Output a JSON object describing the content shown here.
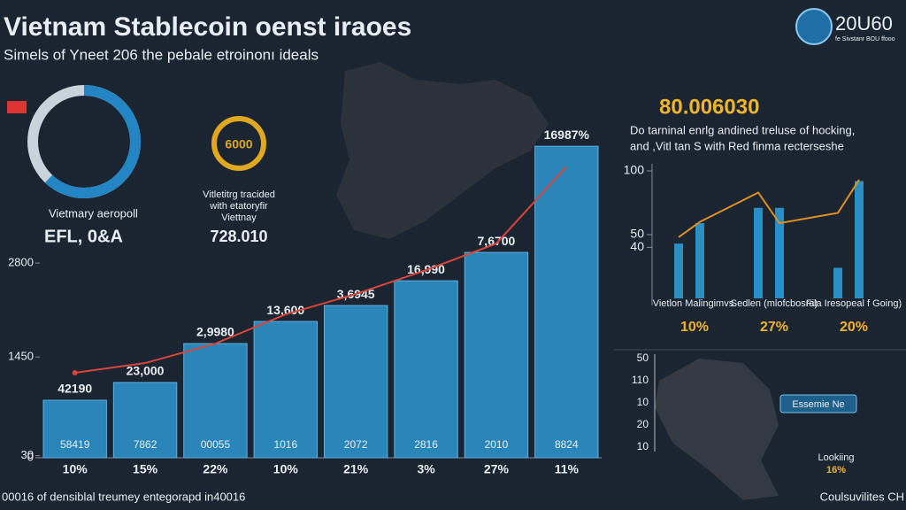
{
  "header": {
    "title": "Vietnam Stablecoin oenst iraoes",
    "subtitle": "Simels of Yneet 206 the pebale etroinonı ideals",
    "logo": "20U60",
    "logo_caption": "fe Sivstanr BOU ffooo"
  },
  "donut_left": {
    "caption": "Vietmary aeropoll",
    "value_text": "EFL, 0&A"
  },
  "donut_mid": {
    "badge": "6000",
    "caption_lines": [
      "Vitletitrg tracided",
      "with etatoryfir",
      "Viettnay"
    ],
    "value_text": "728.010"
  },
  "right_panel": {
    "headline": "80.006030",
    "text_lines": [
      "Do tarninal enrlg andined treluse of hocking,",
      "and ,Vitl tan S with Red finma recterseshe"
    ]
  },
  "map_panel": {
    "scale": [
      50,
      110,
      10,
      20,
      10
    ],
    "callout": "Essemie Ne",
    "legend_label": "Lookiing",
    "legend_value": "16%"
  },
  "footer": {
    "left": "00016 of densiblal treumey entegorapd in40016",
    "right": "Coulsuvilites CH"
  },
  "chart_data": [
    {
      "type": "bar",
      "categories": [
        "58419",
        "7862",
        "00055",
        "1016",
        "2072",
        "2816",
        "2010",
        "8824"
      ],
      "values": [
        827,
        1082,
        1642,
        1960,
        2189,
        2545,
        2953,
        4480
      ],
      "top_labels": [
        "42190",
        "23,000",
        "2,9980",
        "13,600",
        "3,6945",
        "16,990",
        "7,6700",
        "16987%"
      ],
      "percent_labels": [
        "10%",
        "15%",
        "22%",
        "10%",
        "21%",
        "3%",
        "27%",
        "11%"
      ],
      "trend": {
        "color": "#d9453a",
        "values": [
          1222,
          1362,
          1642,
          2062,
          2355,
          2698,
          3080,
          4187
        ]
      },
      "color": "#2a86b8",
      "ylim": [
        0,
        4800
      ],
      "yticks": [
        0,
        30,
        1450,
        2800
      ]
    },
    {
      "type": "bar",
      "categories": [
        "Vietlon Malingimvs.",
        "Sedlen (mlofcbosra)",
        "Fila Iresopeal f Going)"
      ],
      "percent_labels": [
        "10%",
        "27%",
        "20%"
      ],
      "series": [
        {
          "color": "#2a8fc4",
          "values": [
            43,
            71,
            24
          ]
        },
        {
          "color": "#2a8fc4",
          "values": [
            59,
            71,
            92
          ]
        }
      ],
      "curve": {
        "color": "#e0901f",
        "values": [
          48,
          60,
          83,
          59,
          67,
          93
        ]
      },
      "ylim": [
        0,
        100
      ],
      "yticks": [
        40,
        50,
        100
      ]
    }
  ]
}
